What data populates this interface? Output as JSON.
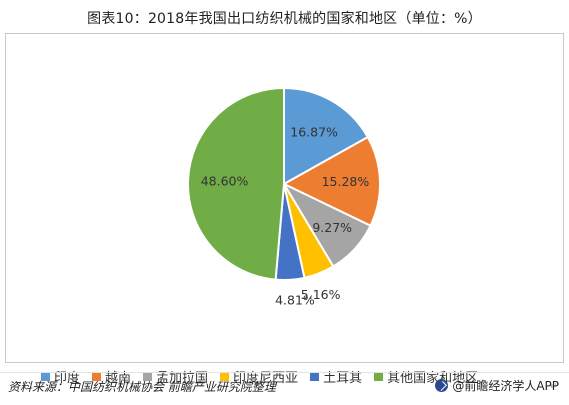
{
  "title": "图表10：2018年我国出口纺织机械的国家和地区（单位：%）",
  "source": "资料来源：中国纺织机械协会 前瞻产业研究院整理",
  "brand": "@前瞻经济学人APP",
  "chart_data": {
    "type": "pie",
    "title": "图表10：2018年我国出口纺织机械的国家和地区（单位：%）",
    "categories": [
      "印度",
      "越南",
      "孟加拉国",
      "印度尼西亚",
      "土耳其",
      "其他国家和地区"
    ],
    "values": [
      16.87,
      15.28,
      9.27,
      5.16,
      4.81,
      48.6
    ],
    "labels": [
      "16.87%",
      "15.28%",
      "9.27%",
      "5.16%",
      "4.81%",
      "48.60%"
    ],
    "colors": [
      "#5b9bd5",
      "#ed7d31",
      "#a5a5a5",
      "#ffc000",
      "#4472c4",
      "#70ad47"
    ],
    "legend_position": "bottom",
    "start_angle_deg": 0,
    "direction": "clockwise"
  }
}
